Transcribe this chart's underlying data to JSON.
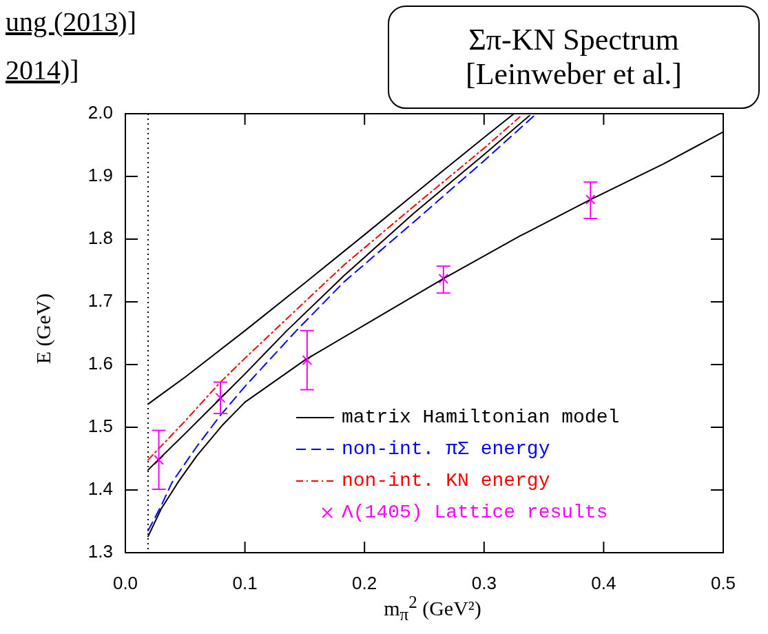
{
  "chart_data": {
    "type": "line",
    "title": "Σπ-KN Spectrum [Leinweber et al.]",
    "xlabel": "m$_{π}$$^{2}$ (GeV²)",
    "ylabel": "E (GeV)",
    "annotations": [
      "ung (2013)]",
      "2014)]"
    ],
    "xlim": [
      0,
      0.5
    ],
    "ylim": [
      1.3,
      2.0
    ],
    "xticks": [
      {
        "value": 0,
        "label": "0.0"
      },
      {
        "value": 0.1,
        "label": "0.1"
      },
      {
        "value": 0.2,
        "label": "0.2"
      },
      {
        "value": 0.3,
        "label": "0.3"
      },
      {
        "value": 0.4,
        "label": "0.4"
      },
      {
        "value": 0.5,
        "label": "0.5"
      }
    ],
    "yticks": [
      {
        "value": 1.3,
        "label": "1.3"
      },
      {
        "value": 1.4,
        "label": "1.4"
      },
      {
        "value": 1.5,
        "label": "1.5"
      },
      {
        "value": 1.6,
        "label": "1.6"
      },
      {
        "value": 1.7,
        "label": "1.7"
      },
      {
        "value": 1.8,
        "label": "1.8"
      },
      {
        "value": 1.9,
        "label": "1.9"
      },
      {
        "value": 2.0,
        "label": "2.0"
      }
    ],
    "legend": "bottom right",
    "ref_lines": [
      {
        "axis": "x",
        "value": 0.019,
        "color": "#000000",
        "line_style": "dotted"
      }
    ],
    "series": [
      {
        "name": "matrix Hamiltonian model",
        "color": "#000000",
        "line_style": "solid",
        "x": [
          0.019,
          0.03,
          0.045,
          0.06,
          0.081,
          0.1,
          0.15,
          0.2,
          0.266,
          0.33,
          0.389,
          0.45,
          0.5
        ],
        "values": [
          1.326,
          1.37,
          1.415,
          1.455,
          1.503,
          1.54,
          1.607,
          1.663,
          1.737,
          1.805,
          1.863,
          1.92,
          1.971
        ]
      },
      {
        "color": "#000000",
        "line_style": "solid",
        "x": [
          0.019,
          0.05,
          0.08,
          0.1,
          0.135,
          0.183,
          0.241,
          0.3,
          0.338
        ],
        "values": [
          1.432,
          1.49,
          1.547,
          1.585,
          1.654,
          1.742,
          1.841,
          1.935,
          1.997
        ]
      },
      {
        "color": "#000000",
        "line_style": "solid",
        "x": [
          0.019,
          0.05,
          0.1,
          0.15,
          0.2,
          0.25,
          0.3,
          0.325
        ],
        "values": [
          1.537,
          1.58,
          1.654,
          1.73,
          1.807,
          1.885,
          1.962,
          2.0
        ]
      },
      {
        "name": "non-int. πΣ energy",
        "color": "#0000ff",
        "line_style": "dashed",
        "x": [
          0.019,
          0.03,
          0.039,
          0.06,
          0.0795,
          0.1,
          0.143,
          0.183,
          0.241,
          0.3,
          0.342
        ],
        "values": [
          1.335,
          1.375,
          1.412,
          1.47,
          1.519,
          1.565,
          1.654,
          1.732,
          1.827,
          1.925,
          1.997
        ]
      },
      {
        "name": "non-int. KN energy",
        "color": "#ff0000",
        "line_style": "dashdot",
        "x": [
          0.019,
          0.05,
          0.079,
          0.1,
          0.15,
          0.183,
          0.241,
          0.3,
          0.33
        ],
        "values": [
          1.448,
          1.51,
          1.571,
          1.61,
          1.7,
          1.759,
          1.852,
          1.945,
          1.995
        ]
      },
      {
        "name": "Λ(1405) Lattice results",
        "type": "scatter",
        "color": "#ff00ff",
        "marker": "cross",
        "x": [
          0.028,
          0.0795,
          0.152,
          0.266,
          0.389
        ],
        "values": [
          1.448,
          1.547,
          1.607,
          1.737,
          1.863
        ],
        "errors": [
          0.047,
          0.025,
          0.047,
          [
            1.714,
            1.757
          ],
          [
            1.833,
            1.891
          ]
        ]
      }
    ]
  }
}
